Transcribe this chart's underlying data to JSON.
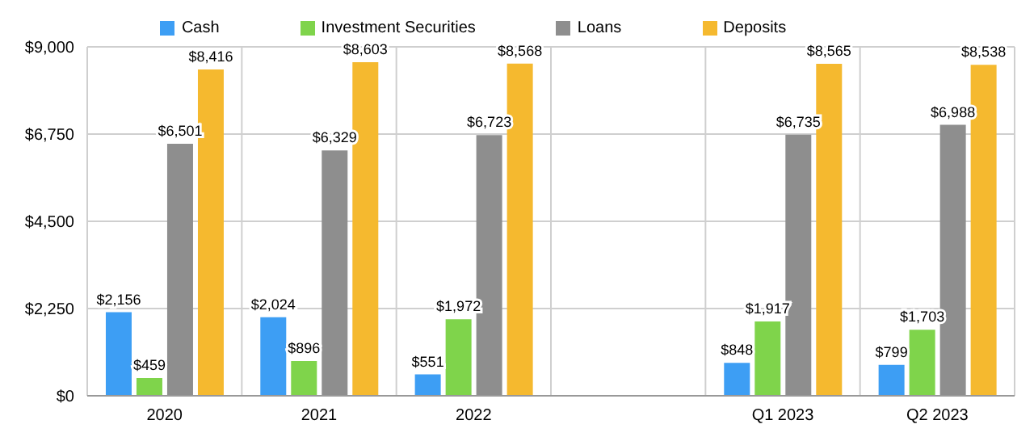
{
  "chart_data": {
    "type": "bar",
    "categories": [
      "2020",
      "2021",
      "2022",
      null,
      "Q1 2023",
      "Q2 2023"
    ],
    "series": [
      {
        "name": "Cash",
        "color": "#3d9ef4",
        "values": [
          2156,
          2024,
          551,
          null,
          848,
          799
        ],
        "value_labels": [
          "$2,156",
          "$2,024",
          "$551",
          null,
          "$848",
          "$799"
        ]
      },
      {
        "name": "Investment Securities",
        "color": "#7fd44b",
        "values": [
          459,
          896,
          1972,
          null,
          1917,
          1703
        ],
        "value_labels": [
          "$459",
          "$896",
          "$1,972",
          null,
          "$1,917",
          "$1,703"
        ]
      },
      {
        "name": "Loans",
        "color": "#8e8e8e",
        "values": [
          6501,
          6329,
          6723,
          null,
          6735,
          6988
        ],
        "value_labels": [
          "$6,501",
          "$6,329",
          "$6,723",
          null,
          "$6,735",
          "$6,988"
        ]
      },
      {
        "name": "Deposits",
        "color": "#f5b92f",
        "values": [
          8416,
          8603,
          8568,
          null,
          8565,
          8538
        ],
        "value_labels": [
          "$8,416",
          "$8,603",
          "$8,568",
          null,
          "$8,565",
          "$8,538"
        ]
      }
    ],
    "ylim": [
      0,
      9000
    ],
    "yticks": [
      {
        "value": 0,
        "label": "$0"
      },
      {
        "value": 2250,
        "label": "$2,250"
      },
      {
        "value": 4500,
        "label": "$4,500"
      },
      {
        "value": 6750,
        "label": "$6,750"
      },
      {
        "value": 9000,
        "label": "$9,000"
      }
    ],
    "grid": true,
    "legend": "top"
  }
}
